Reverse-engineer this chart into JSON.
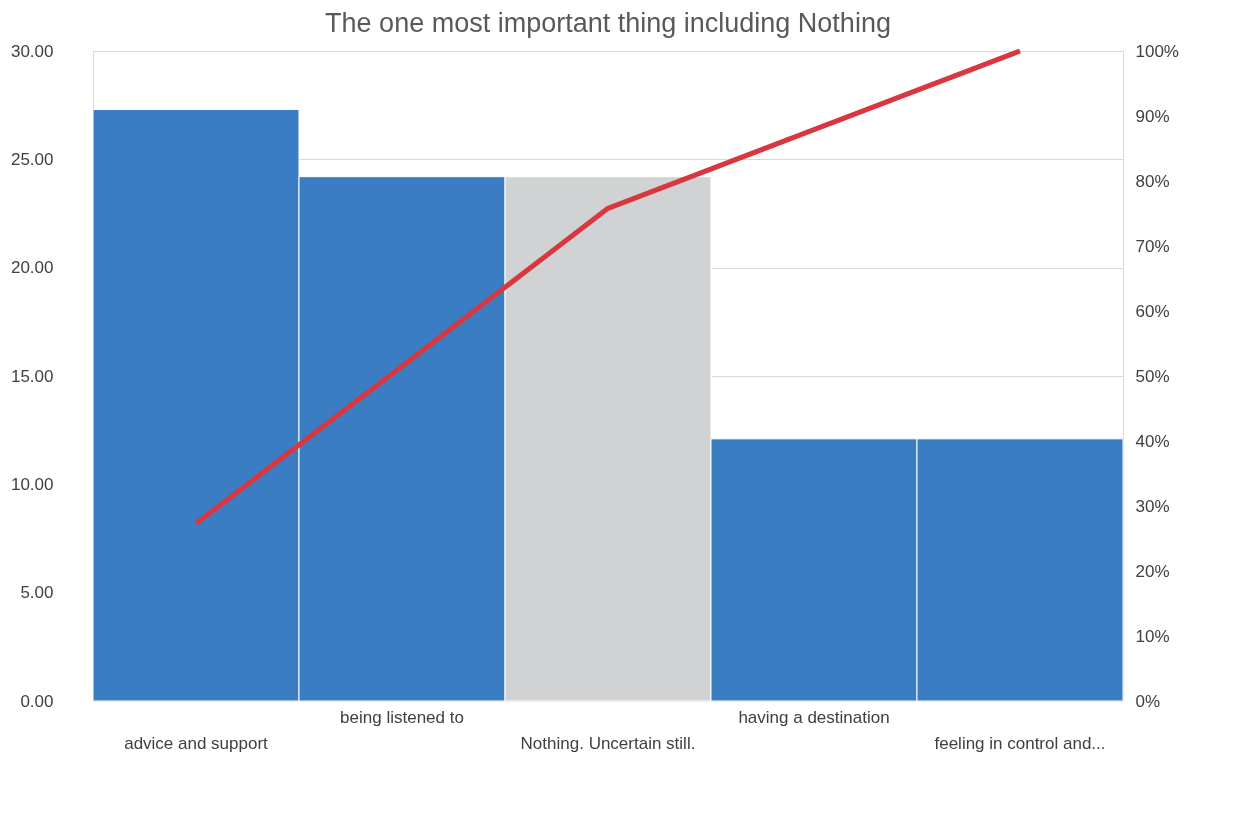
{
  "chart_data": {
    "type": "bar",
    "title": "The one most important thing including Nothing",
    "categories": [
      "advice and support",
      "being listened to",
      "Nothing. Uncertain still.",
      "having a destination",
      "feeling in control and..."
    ],
    "series": [
      {
        "colors": [
          "#3a7dc2",
          "#3a7dc2",
          "#d0d2d3",
          "#3a7dc2",
          "#3a7dc2"
        ],
        "values": [
          27.3,
          24.2,
          24.2,
          12.1,
          12.1
        ]
      },
      {
        "type": "line",
        "axis": "y2",
        "color": "#d9373f",
        "values": [
          27.3,
          51.5,
          75.8,
          87.9,
          100
        ]
      }
    ],
    "ylim": [
      0,
      30
    ],
    "yticks": [
      {
        "value": 0,
        "label": "0.00"
      },
      {
        "value": 5,
        "label": "5.00"
      },
      {
        "value": 10,
        "label": "10.00"
      },
      {
        "value": 15,
        "label": "15.00"
      },
      {
        "value": 20,
        "label": "20.00"
      },
      {
        "value": 25,
        "label": "25.00"
      },
      {
        "value": 30,
        "label": "30.00"
      }
    ],
    "y2lim": [
      0,
      100
    ],
    "y2ticks": [
      {
        "value": 0,
        "label": "0%"
      },
      {
        "value": 10,
        "label": "10%"
      },
      {
        "value": 20,
        "label": "20%"
      },
      {
        "value": 30,
        "label": "30%"
      },
      {
        "value": 40,
        "label": "40%"
      },
      {
        "value": 50,
        "label": "50%"
      },
      {
        "value": 60,
        "label": "60%"
      },
      {
        "value": 70,
        "label": "70%"
      },
      {
        "value": 80,
        "label": "80%"
      },
      {
        "value": 90,
        "label": "90%"
      },
      {
        "value": 100,
        "label": "100%"
      }
    ],
    "grid": "y",
    "line_style": "solid",
    "marker": "none"
  }
}
